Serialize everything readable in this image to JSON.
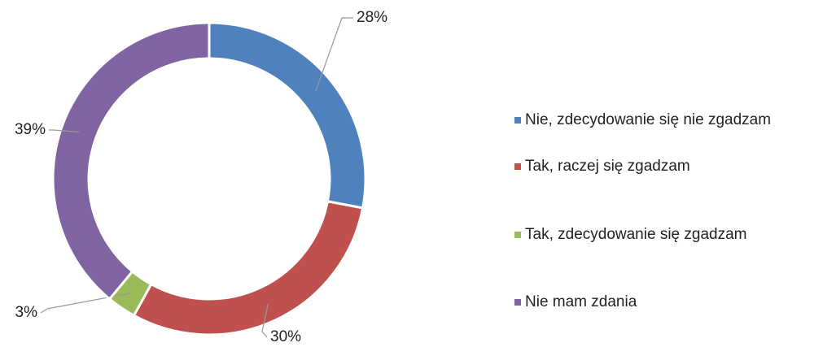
{
  "chart_data": {
    "type": "donut",
    "categories": [
      "Nie, zdecydowanie się nie zgadzam",
      "Tak, raczej się zgadzam",
      "Tak, zdecydowanie się zgadzam",
      "Nie mam zdania"
    ],
    "values": [
      28,
      30,
      3,
      39
    ],
    "value_labels": [
      "28%",
      "30%",
      "3%",
      "39%"
    ],
    "colors": [
      "#4f81bd",
      "#c0504d",
      "#9bbb59",
      "#8064a2"
    ],
    "legend": "right"
  }
}
